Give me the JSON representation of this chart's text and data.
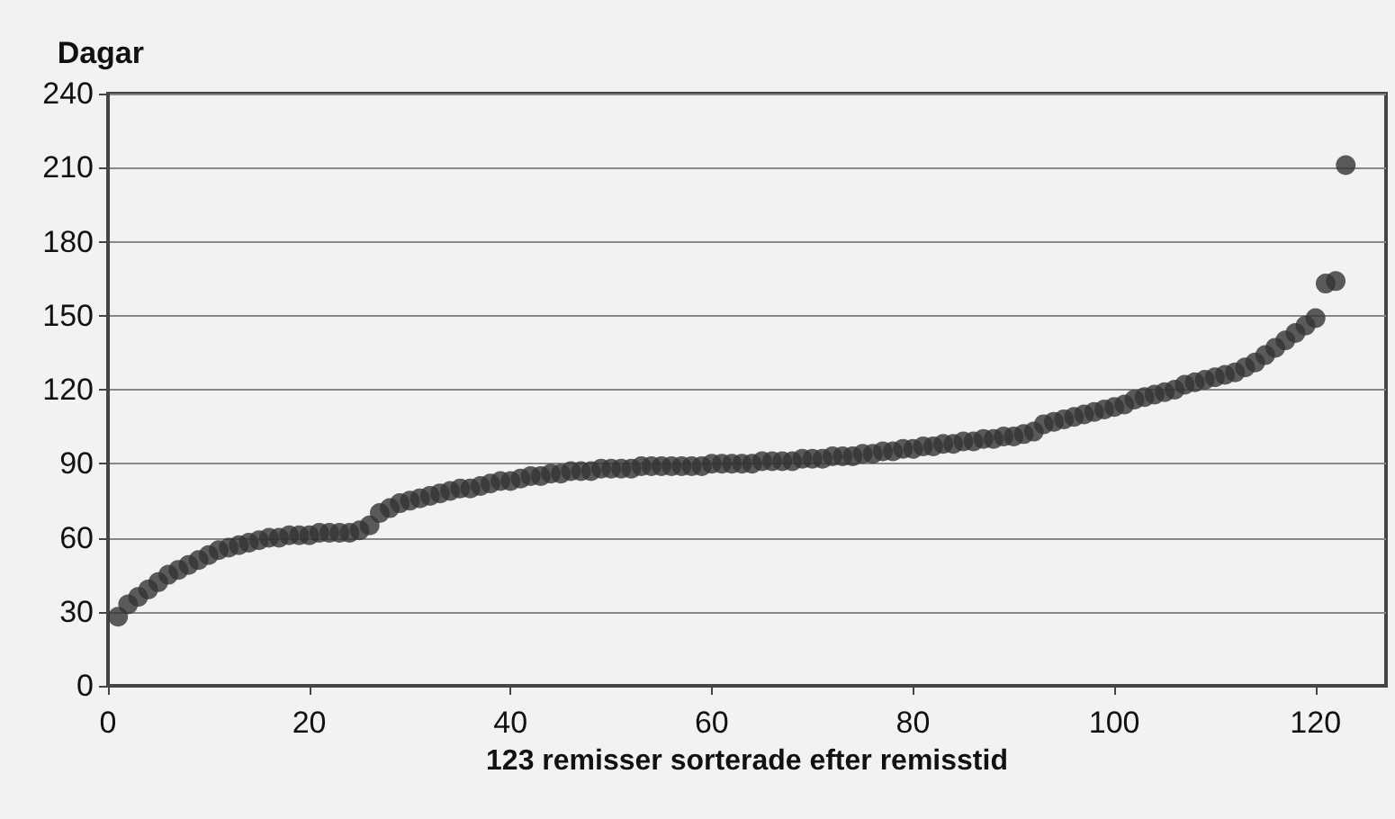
{
  "chart_data": {
    "type": "scatter",
    "ylabel": "Dagar",
    "xlabel": "123 remisser sorterade efter remisstid",
    "xlim": [
      0,
      127
    ],
    "xticks": [
      0,
      20,
      40,
      60,
      80,
      100,
      120
    ],
    "ylim": [
      0,
      240
    ],
    "yticks": [
      0,
      30,
      60,
      90,
      120,
      150,
      180,
      210,
      240
    ],
    "grid": "y",
    "marker": "circle",
    "series": [
      {
        "color": "#333333",
        "x": [
          1,
          2,
          3,
          4,
          5,
          6,
          7,
          8,
          9,
          10,
          11,
          12,
          13,
          14,
          15,
          16,
          17,
          18,
          19,
          20,
          21,
          22,
          23,
          24,
          25,
          26,
          27,
          28,
          29,
          30,
          31,
          32,
          33,
          34,
          35,
          36,
          37,
          38,
          39,
          40,
          41,
          42,
          43,
          44,
          45,
          46,
          47,
          48,
          49,
          50,
          51,
          52,
          53,
          54,
          55,
          56,
          57,
          58,
          59,
          60,
          61,
          62,
          63,
          64,
          65,
          66,
          67,
          68,
          69,
          70,
          71,
          72,
          73,
          74,
          75,
          76,
          77,
          78,
          79,
          80,
          81,
          82,
          83,
          84,
          85,
          86,
          87,
          88,
          89,
          90,
          91,
          92,
          93,
          94,
          95,
          96,
          97,
          98,
          99,
          100,
          101,
          102,
          103,
          104,
          105,
          106,
          107,
          108,
          109,
          110,
          111,
          112,
          113,
          114,
          115,
          116,
          117,
          118,
          119,
          120,
          121,
          122,
          123
        ],
        "values": [
          28,
          33,
          36,
          39,
          42,
          45,
          47,
          49,
          51,
          53,
          55,
          56,
          57,
          58,
          59,
          60,
          60,
          61,
          61,
          61,
          62,
          62,
          62,
          62,
          63,
          65,
          70,
          72,
          74,
          75,
          76,
          77,
          78,
          79,
          80,
          80,
          81,
          82,
          83,
          83,
          84,
          85,
          85,
          86,
          86,
          87,
          87,
          87,
          88,
          88,
          88,
          88,
          89,
          89,
          89,
          89,
          89,
          89,
          89,
          90,
          90,
          90,
          90,
          90,
          91,
          91,
          91,
          91,
          92,
          92,
          92,
          93,
          93,
          93,
          94,
          94,
          95,
          95,
          96,
          96,
          97,
          97,
          98,
          98,
          99,
          99,
          100,
          100,
          101,
          101,
          102,
          103,
          106,
          107,
          108,
          109,
          110,
          111,
          112,
          113,
          114,
          116,
          117,
          118,
          119,
          120,
          122,
          123,
          124,
          125,
          126,
          127,
          129,
          131,
          134,
          137,
          140,
          143,
          146,
          149,
          163,
          164,
          211
        ]
      }
    ]
  }
}
